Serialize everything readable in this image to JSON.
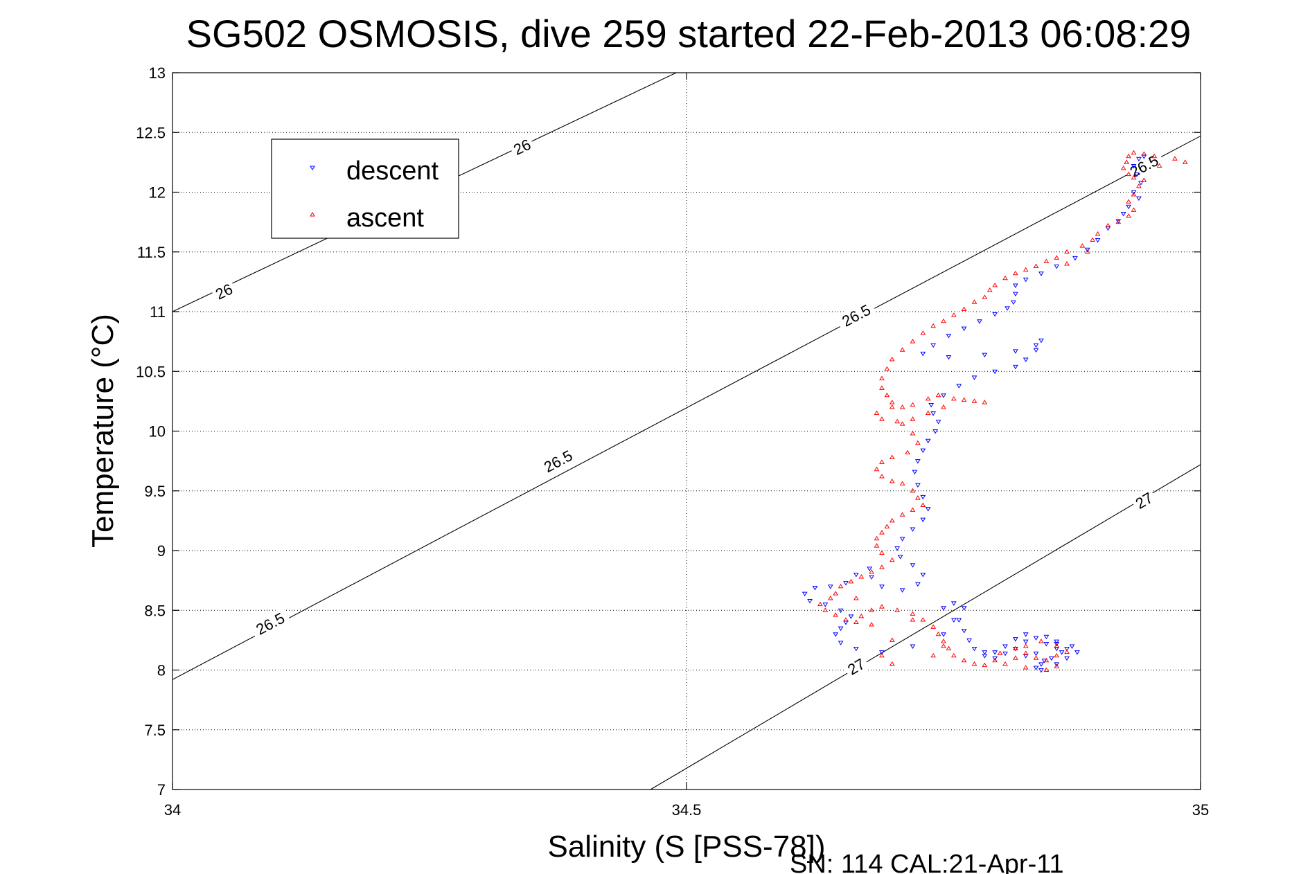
{
  "chart_data": {
    "type": "scatter",
    "title": "SG502 OSMOSIS, dive 259 started 22-Feb-2013 06:08:29",
    "xlabel": "Salinity (S [PSS-78])",
    "ylabel": "Temperature (°C)",
    "footnote": "SN: 114  CAL:21-Apr-11",
    "xlim": [
      34,
      35
    ],
    "ylim": [
      7,
      13
    ],
    "xticks": [
      34,
      34.5,
      35
    ],
    "xtick_labels": [
      "34",
      "34.5",
      "35"
    ],
    "yticks": [
      7,
      7.5,
      8,
      8.5,
      9,
      9.5,
      10,
      10.5,
      11,
      11.5,
      12,
      12.5,
      13
    ],
    "ytick_labels": [
      "7",
      "7.5",
      "8",
      "8.5",
      "9",
      "9.5",
      "10",
      "10.5",
      "11",
      "11.5",
      "12",
      "12.5",
      "13"
    ],
    "grid": true,
    "legend_position": "top-left",
    "density_contours": [
      {
        "label": "26",
        "points": [
          [
            34.0,
            11.0
          ],
          [
            34.49,
            13.0
          ]
        ],
        "labels_at": [
          [
            34.05,
            11.17
          ],
          [
            34.34,
            12.38
          ]
        ]
      },
      {
        "label": "26.5",
        "points": [
          [
            34.0,
            7.92
          ],
          [
            35.0,
            12.47
          ]
        ],
        "labels_at": [
          [
            34.095,
            8.39
          ],
          [
            34.375,
            9.75
          ],
          [
            34.665,
            10.97
          ],
          [
            34.945,
            12.22
          ]
        ]
      },
      {
        "label": "27",
        "points": [
          [
            34.465,
            7.0
          ],
          [
            35.0,
            9.72
          ]
        ],
        "labels_at": [
          [
            34.665,
            8.03
          ],
          [
            34.945,
            9.42
          ]
        ]
      }
    ],
    "series": [
      {
        "name": "descent",
        "color": "#0000ff",
        "marker": "triangle-down",
        "points": [
          [
            34.945,
            12.3
          ],
          [
            34.94,
            12.28
          ],
          [
            34.935,
            12.22
          ],
          [
            34.938,
            12.15
          ],
          [
            34.942,
            12.08
          ],
          [
            34.935,
            12.0
          ],
          [
            34.94,
            11.95
          ],
          [
            34.93,
            11.88
          ],
          [
            34.925,
            11.82
          ],
          [
            34.92,
            11.76
          ],
          [
            34.91,
            11.7
          ],
          [
            34.9,
            11.6
          ],
          [
            34.89,
            11.52
          ],
          [
            34.878,
            11.45
          ],
          [
            34.86,
            11.38
          ],
          [
            34.845,
            11.32
          ],
          [
            34.83,
            11.27
          ],
          [
            34.82,
            11.22
          ],
          [
            34.82,
            11.15
          ],
          [
            34.818,
            11.08
          ],
          [
            34.812,
            11.03
          ],
          [
            34.8,
            10.98
          ],
          [
            34.785,
            10.92
          ],
          [
            34.77,
            10.86
          ],
          [
            34.755,
            10.8
          ],
          [
            34.74,
            10.72
          ],
          [
            34.73,
            10.65
          ],
          [
            34.755,
            10.62
          ],
          [
            34.79,
            10.64
          ],
          [
            34.82,
            10.67
          ],
          [
            34.84,
            10.72
          ],
          [
            34.845,
            10.76
          ],
          [
            34.84,
            10.68
          ],
          [
            34.83,
            10.6
          ],
          [
            34.82,
            10.54
          ],
          [
            34.8,
            10.5
          ],
          [
            34.78,
            10.45
          ],
          [
            34.765,
            10.38
          ],
          [
            34.75,
            10.3
          ],
          [
            34.738,
            10.22
          ],
          [
            34.74,
            10.15
          ],
          [
            34.745,
            10.08
          ],
          [
            34.742,
            10.0
          ],
          [
            34.735,
            9.92
          ],
          [
            34.73,
            9.84
          ],
          [
            34.725,
            9.75
          ],
          [
            34.722,
            9.66
          ],
          [
            34.725,
            9.55
          ],
          [
            34.73,
            9.45
          ],
          [
            34.735,
            9.35
          ],
          [
            34.73,
            9.26
          ],
          [
            34.72,
            9.18
          ],
          [
            34.71,
            9.1
          ],
          [
            34.705,
            9.02
          ],
          [
            34.708,
            8.95
          ],
          [
            34.72,
            8.88
          ],
          [
            34.73,
            8.8
          ],
          [
            34.725,
            8.72
          ],
          [
            34.71,
            8.67
          ],
          [
            34.69,
            8.7
          ],
          [
            34.68,
            8.78
          ],
          [
            34.678,
            8.85
          ],
          [
            34.665,
            8.8
          ],
          [
            34.655,
            8.73
          ],
          [
            34.64,
            8.7
          ],
          [
            34.625,
            8.69
          ],
          [
            34.615,
            8.64
          ],
          [
            34.62,
            8.58
          ],
          [
            34.635,
            8.55
          ],
          [
            34.65,
            8.5
          ],
          [
            34.66,
            8.45
          ],
          [
            34.655,
            8.4
          ],
          [
            34.65,
            8.35
          ],
          [
            34.645,
            8.3
          ],
          [
            34.65,
            8.23
          ],
          [
            34.665,
            8.18
          ],
          [
            34.69,
            8.15
          ],
          [
            34.72,
            8.2
          ],
          [
            34.75,
            8.3
          ],
          [
            34.765,
            8.42
          ],
          [
            34.77,
            8.52
          ],
          [
            34.76,
            8.56
          ],
          [
            34.75,
            8.52
          ],
          [
            34.76,
            8.42
          ],
          [
            34.77,
            8.33
          ],
          [
            34.775,
            8.25
          ],
          [
            34.78,
            8.18
          ],
          [
            34.79,
            8.12
          ],
          [
            34.8,
            8.15
          ],
          [
            34.81,
            8.2
          ],
          [
            34.82,
            8.26
          ],
          [
            34.83,
            8.3
          ],
          [
            34.84,
            8.27
          ],
          [
            34.85,
            8.22
          ],
          [
            34.86,
            8.18
          ],
          [
            34.865,
            8.15
          ],
          [
            34.855,
            8.1
          ],
          [
            34.845,
            8.05
          ],
          [
            34.84,
            8.02
          ],
          [
            34.845,
            8.0
          ],
          [
            34.86,
            8.05
          ],
          [
            34.87,
            8.1
          ],
          [
            34.87,
            8.18
          ],
          [
            34.86,
            8.24
          ],
          [
            34.85,
            8.28
          ],
          [
            34.83,
            8.24
          ],
          [
            34.82,
            8.18
          ],
          [
            34.81,
            8.14
          ],
          [
            34.8,
            8.1
          ],
          [
            34.79,
            8.15
          ],
          [
            34.83,
            8.12
          ],
          [
            34.848,
            8.08
          ],
          [
            34.84,
            8.14
          ],
          [
            34.86,
            8.22
          ],
          [
            34.875,
            8.2
          ],
          [
            34.88,
            8.15
          ]
        ]
      },
      {
        "name": "ascent",
        "color": "#ff0000",
        "marker": "triangle-up",
        "points": [
          [
            34.96,
            12.22
          ],
          [
            34.955,
            12.3
          ],
          [
            34.945,
            12.32
          ],
          [
            34.935,
            12.33
          ],
          [
            34.93,
            12.3
          ],
          [
            34.928,
            12.25
          ],
          [
            34.925,
            12.2
          ],
          [
            34.93,
            12.15
          ],
          [
            34.935,
            12.12
          ],
          [
            34.945,
            12.1
          ],
          [
            34.94,
            12.05
          ],
          [
            34.935,
            11.98
          ],
          [
            34.93,
            11.92
          ],
          [
            34.935,
            11.85
          ],
          [
            34.93,
            11.8
          ],
          [
            34.92,
            11.75
          ],
          [
            34.91,
            11.72
          ],
          [
            34.9,
            11.65
          ],
          [
            34.895,
            11.6
          ],
          [
            34.885,
            11.55
          ],
          [
            34.87,
            11.5
          ],
          [
            34.86,
            11.45
          ],
          [
            34.85,
            11.42
          ],
          [
            34.84,
            11.38
          ],
          [
            34.83,
            11.35
          ],
          [
            34.82,
            11.32
          ],
          [
            34.81,
            11.28
          ],
          [
            34.8,
            11.22
          ],
          [
            34.795,
            11.18
          ],
          [
            34.79,
            11.12
          ],
          [
            34.78,
            11.08
          ],
          [
            34.77,
            11.02
          ],
          [
            34.76,
            10.97
          ],
          [
            34.75,
            10.92
          ],
          [
            34.74,
            10.88
          ],
          [
            34.73,
            10.82
          ],
          [
            34.72,
            10.75
          ],
          [
            34.71,
            10.68
          ],
          [
            34.7,
            10.6
          ],
          [
            34.695,
            10.52
          ],
          [
            34.69,
            10.44
          ],
          [
            34.69,
            10.36
          ],
          [
            34.695,
            10.3
          ],
          [
            34.7,
            10.24
          ],
          [
            34.71,
            10.2
          ],
          [
            34.72,
            10.22
          ],
          [
            34.735,
            10.27
          ],
          [
            34.745,
            10.3
          ],
          [
            34.76,
            10.27
          ],
          [
            34.78,
            10.25
          ],
          [
            34.79,
            10.24
          ],
          [
            34.77,
            10.26
          ],
          [
            34.75,
            10.2
          ],
          [
            34.735,
            10.15
          ],
          [
            34.72,
            10.1
          ],
          [
            34.705,
            10.08
          ],
          [
            34.69,
            10.1
          ],
          [
            34.685,
            10.15
          ],
          [
            34.7,
            10.2
          ],
          [
            34.71,
            10.06
          ],
          [
            34.72,
            9.98
          ],
          [
            34.725,
            9.9
          ],
          [
            34.715,
            9.82
          ],
          [
            34.7,
            9.78
          ],
          [
            34.69,
            9.74
          ],
          [
            34.685,
            9.68
          ],
          [
            34.69,
            9.62
          ],
          [
            34.7,
            9.58
          ],
          [
            34.71,
            9.56
          ],
          [
            34.72,
            9.5
          ],
          [
            34.725,
            9.44
          ],
          [
            34.73,
            9.38
          ],
          [
            34.72,
            9.34
          ],
          [
            34.71,
            9.3
          ],
          [
            34.7,
            9.25
          ],
          [
            34.695,
            9.2
          ],
          [
            34.69,
            9.15
          ],
          [
            34.685,
            9.1
          ],
          [
            34.685,
            9.04
          ],
          [
            34.69,
            8.98
          ],
          [
            34.7,
            8.92
          ],
          [
            34.69,
            8.86
          ],
          [
            34.68,
            8.82
          ],
          [
            34.67,
            8.78
          ],
          [
            34.66,
            8.74
          ],
          [
            34.65,
            8.7
          ],
          [
            34.645,
            8.64
          ],
          [
            34.64,
            8.6
          ],
          [
            34.63,
            8.55
          ],
          [
            34.635,
            8.5
          ],
          [
            34.645,
            8.46
          ],
          [
            34.655,
            8.42
          ],
          [
            34.665,
            8.4
          ],
          [
            34.67,
            8.45
          ],
          [
            34.68,
            8.5
          ],
          [
            34.69,
            8.53
          ],
          [
            34.705,
            8.5
          ],
          [
            34.72,
            8.47
          ],
          [
            34.73,
            8.42
          ],
          [
            34.74,
            8.36
          ],
          [
            34.745,
            8.3
          ],
          [
            34.75,
            8.24
          ],
          [
            34.755,
            8.18
          ],
          [
            34.76,
            8.12
          ],
          [
            34.77,
            8.08
          ],
          [
            34.78,
            8.05
          ],
          [
            34.79,
            8.04
          ],
          [
            34.8,
            8.08
          ],
          [
            34.805,
            8.14
          ],
          [
            34.82,
            8.18
          ],
          [
            34.83,
            8.14
          ],
          [
            34.84,
            8.1
          ],
          [
            34.85,
            8.08
          ],
          [
            34.86,
            8.12
          ],
          [
            34.87,
            8.15
          ],
          [
            34.86,
            8.2
          ],
          [
            34.845,
            8.24
          ],
          [
            34.83,
            8.2
          ],
          [
            34.82,
            8.1
          ],
          [
            34.81,
            8.05
          ],
          [
            34.83,
            8.02
          ],
          [
            34.85,
            8.0
          ],
          [
            34.86,
            8.03
          ],
          [
            34.75,
            8.2
          ],
          [
            34.74,
            8.12
          ],
          [
            34.7,
            8.05
          ],
          [
            34.69,
            8.12
          ],
          [
            34.72,
            8.42
          ],
          [
            34.985,
            12.25
          ],
          [
            34.975,
            12.28
          ],
          [
            34.89,
            11.5
          ],
          [
            34.87,
            11.4
          ],
          [
            34.665,
            8.6
          ],
          [
            34.68,
            8.38
          ],
          [
            34.7,
            8.25
          ]
        ]
      }
    ]
  }
}
